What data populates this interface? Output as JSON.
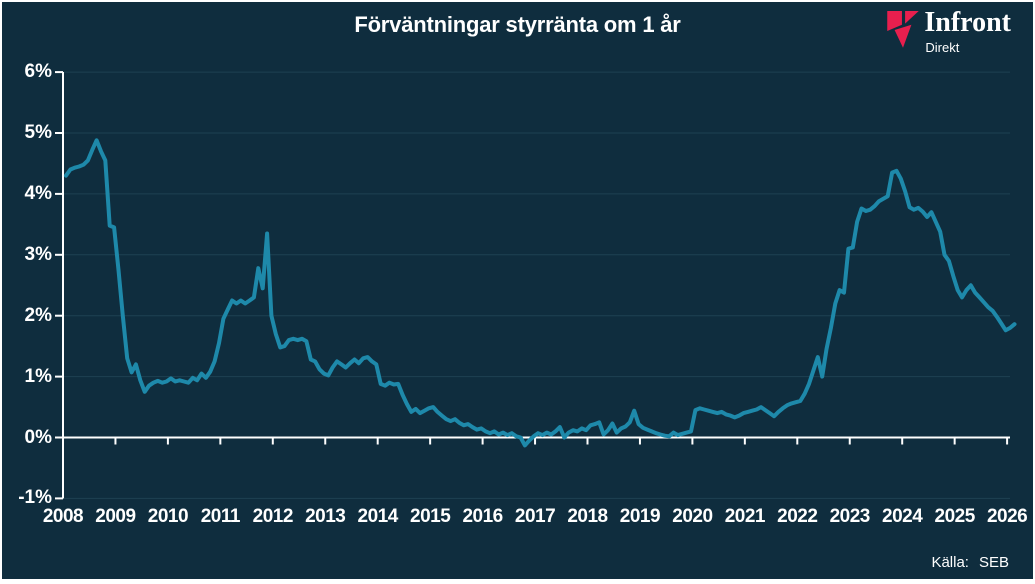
{
  "title": "Förväntningar styrränta om 1 år",
  "logo": {
    "name": "Infront",
    "sub": "Direkt",
    "accent_color": "#e81f4e"
  },
  "source": {
    "label": "Källa:",
    "value": "SEB"
  },
  "colors": {
    "background": "#0f2d3e",
    "line": "#1e89aa",
    "axis": "#ffffff",
    "grid": "#1e4152",
    "text": "#ffffff",
    "logo_red": "#e81f4e"
  },
  "chart_data": {
    "type": "line",
    "title": "Förväntningar styrränta om 1 år",
    "series_name": "Förväntad styrränta om 1 år (%)",
    "frequency": "monthly",
    "x_start": "2008-01",
    "x_end": "2026-02",
    "xlabel": "",
    "ylabel": "",
    "ylim": [
      -1,
      6
    ],
    "grid": "horizontal",
    "legend": "none",
    "x_tick_labels": [
      "2008",
      "2009",
      "2010",
      "2011",
      "2012",
      "2013",
      "2014",
      "2015",
      "2016",
      "2017",
      "2018",
      "2019",
      "2020",
      "2021",
      "2022",
      "2023",
      "2024",
      "2025",
      "2026"
    ],
    "y_tick_labels": [
      "6%",
      "5%",
      "4%",
      "3%",
      "2%",
      "1%",
      "0%",
      "-1%"
    ],
    "y_tick_values": [
      6,
      5,
      4,
      3,
      2,
      1,
      0,
      -1
    ],
    "values": [
      4.3,
      4.4,
      4.43,
      4.45,
      4.48,
      4.55,
      4.72,
      4.88,
      4.7,
      4.55,
      3.48,
      3.45,
      2.75,
      2.0,
      1.3,
      1.07,
      1.2,
      0.94,
      0.75,
      0.85,
      0.9,
      0.93,
      0.9,
      0.92,
      0.97,
      0.92,
      0.94,
      0.92,
      0.9,
      0.98,
      0.94,
      1.05,
      0.98,
      1.08,
      1.25,
      1.55,
      1.95,
      2.1,
      2.25,
      2.2,
      2.25,
      2.2,
      2.25,
      2.3,
      2.78,
      2.45,
      3.35,
      2.0,
      1.7,
      1.48,
      1.5,
      1.6,
      1.62,
      1.6,
      1.62,
      1.58,
      1.28,
      1.25,
      1.12,
      1.05,
      1.02,
      1.15,
      1.25,
      1.2,
      1.15,
      1.22,
      1.28,
      1.22,
      1.3,
      1.32,
      1.25,
      1.2,
      0.88,
      0.85,
      0.9,
      0.87,
      0.88,
      0.7,
      0.55,
      0.42,
      0.47,
      0.4,
      0.44,
      0.48,
      0.5,
      0.42,
      0.36,
      0.3,
      0.27,
      0.3,
      0.24,
      0.2,
      0.22,
      0.17,
      0.13,
      0.15,
      0.1,
      0.07,
      0.1,
      0.05,
      0.08,
      0.04,
      0.07,
      0.02,
      0.0,
      -0.13,
      -0.05,
      0.02,
      0.07,
      0.04,
      0.08,
      0.05,
      0.1,
      0.17,
      0.0,
      0.08,
      0.12,
      0.1,
      0.15,
      0.12,
      0.2,
      0.22,
      0.25,
      0.05,
      0.12,
      0.23,
      0.08,
      0.15,
      0.18,
      0.25,
      0.44,
      0.22,
      0.16,
      0.13,
      0.1,
      0.07,
      0.05,
      0.03,
      0.02,
      0.08,
      0.04,
      0.06,
      0.08,
      0.1,
      0.45,
      0.48,
      0.46,
      0.44,
      0.42,
      0.4,
      0.42,
      0.38,
      0.36,
      0.33,
      0.36,
      0.4,
      0.42,
      0.44,
      0.46,
      0.5,
      0.45,
      0.4,
      0.35,
      0.42,
      0.48,
      0.53,
      0.56,
      0.58,
      0.6,
      0.72,
      0.88,
      1.1,
      1.32,
      1.0,
      1.45,
      1.8,
      2.2,
      2.42,
      2.38,
      3.1,
      3.12,
      3.54,
      3.76,
      3.72,
      3.74,
      3.8,
      3.88,
      3.92,
      3.96,
      4.35,
      4.38,
      4.25,
      4.04,
      3.78,
      3.74,
      3.77,
      3.71,
      3.62,
      3.7,
      3.54,
      3.38,
      3.0,
      2.9,
      2.65,
      2.42,
      2.3,
      2.42,
      2.5,
      2.38,
      2.3,
      2.22,
      2.14,
      2.08,
      1.98,
      1.87,
      1.76,
      1.8,
      1.86
    ]
  }
}
